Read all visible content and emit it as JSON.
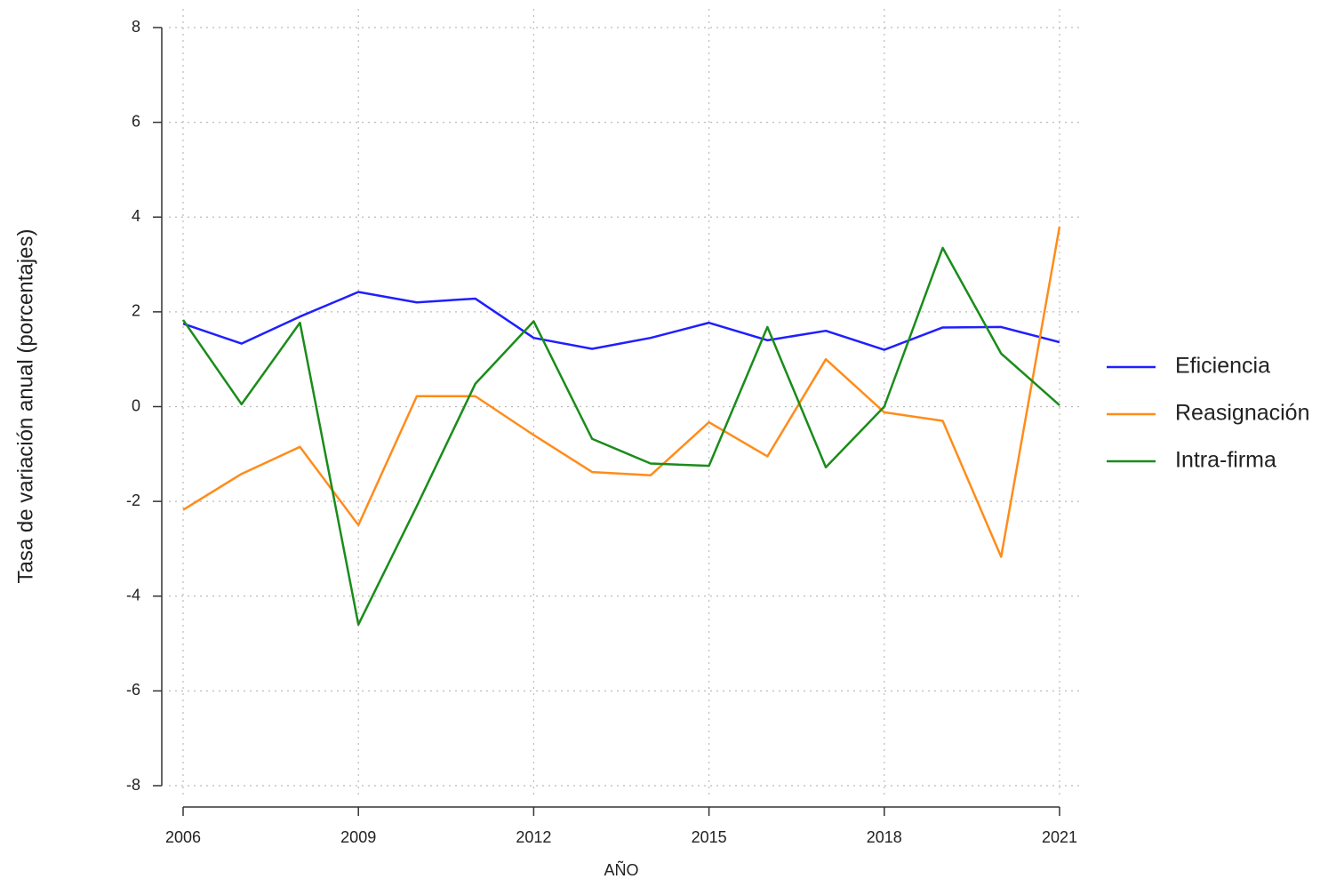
{
  "chart_data": {
    "type": "line",
    "y_label": "Tasa de variación anual (porcentajes)",
    "x_label": "AÑO",
    "x": [
      2006,
      2007,
      2008,
      2009,
      2010,
      2011,
      2012,
      2013,
      2014,
      2015,
      2016,
      2017,
      2018,
      2019,
      2020,
      2021
    ],
    "series": [
      {
        "name": "Eficiencia",
        "color": "#1f1fff",
        "values": [
          1.75,
          1.33,
          1.9,
          2.42,
          2.2,
          2.28,
          1.45,
          1.22,
          1.45,
          1.77,
          1.4,
          1.6,
          1.2,
          1.67,
          1.68,
          1.36
        ]
      },
      {
        "name": "Reasignación",
        "color": "#ff8c1a",
        "values": [
          -2.18,
          -1.42,
          -0.85,
          -2.5,
          0.22,
          0.22,
          -0.6,
          -1.38,
          -1.45,
          -0.33,
          -1.05,
          1.0,
          -0.12,
          -0.3,
          -3.17,
          3.8
        ]
      },
      {
        "name": "Intra-firma",
        "color": "#1a8c1a",
        "values": [
          1.83,
          0.05,
          1.77,
          -4.6,
          -2.1,
          0.48,
          1.8,
          -0.68,
          -1.2,
          -1.25,
          1.68,
          -1.28,
          0,
          3.35,
          1.12,
          0.03
        ]
      }
    ],
    "xlim": [
      2006,
      2021
    ],
    "xticks": [
      2006,
      2009,
      2012,
      2015,
      2018,
      2021
    ],
    "ylim": [
      -8,
      8
    ],
    "yticks": [
      -8,
      -6,
      -4,
      -2,
      0,
      2,
      4,
      6,
      8
    ],
    "grid": true,
    "legend": "right"
  }
}
